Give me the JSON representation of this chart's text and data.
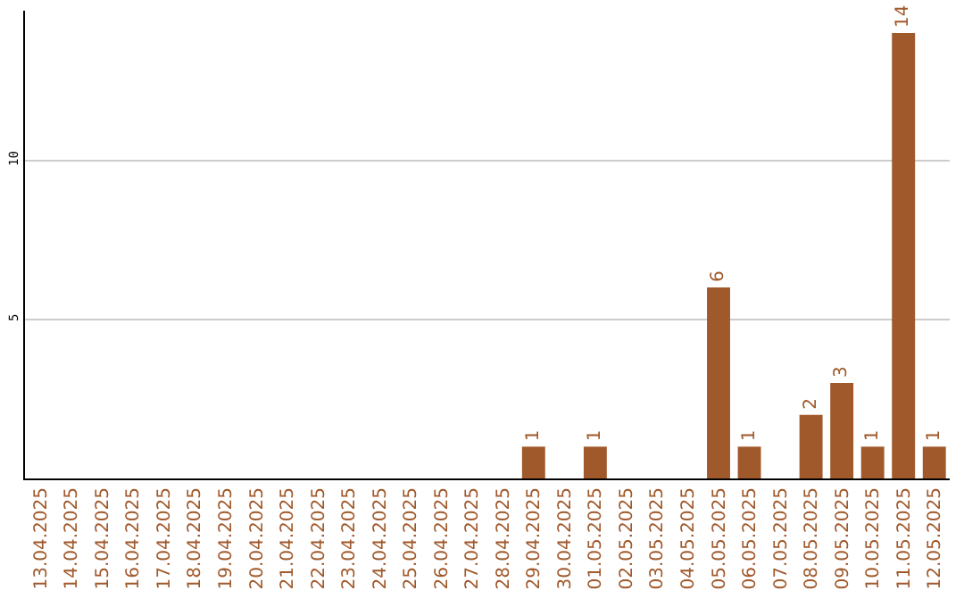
{
  "chart_data": {
    "type": "bar",
    "categories": [
      "13.04.2025",
      "14.04.2025",
      "15.04.2025",
      "16.04.2025",
      "17.04.2025",
      "18.04.2025",
      "19.04.2025",
      "20.04.2025",
      "21.04.2025",
      "22.04.2025",
      "23.04.2025",
      "24.04.2025",
      "25.04.2025",
      "26.04.2025",
      "27.04.2025",
      "28.04.2025",
      "29.04.2025",
      "30.04.2025",
      "01.05.2025",
      "02.05.2025",
      "03.05.2025",
      "04.05.2025",
      "05.05.2025",
      "06.05.2025",
      "07.05.2025",
      "08.05.2025",
      "09.05.2025",
      "10.05.2025",
      "11.05.2025",
      "12.05.2025"
    ],
    "values": [
      0,
      0,
      0,
      0,
      0,
      0,
      0,
      0,
      0,
      0,
      0,
      0,
      0,
      0,
      0,
      0,
      1,
      0,
      1,
      0,
      0,
      0,
      6,
      1,
      0,
      2,
      3,
      1,
      14,
      1
    ],
    "value_labels": [
      null,
      null,
      null,
      null,
      null,
      null,
      null,
      null,
      null,
      null,
      null,
      null,
      null,
      null,
      null,
      null,
      "1",
      null,
      "1",
      null,
      null,
      null,
      "6",
      "1",
      null,
      "2",
      "3",
      "1",
      "14",
      "1"
    ],
    "color": "#a0592b",
    "ylim": [
      0,
      14.7
    ],
    "yticks": [
      5,
      10
    ],
    "grid": "y",
    "legend": false
  }
}
